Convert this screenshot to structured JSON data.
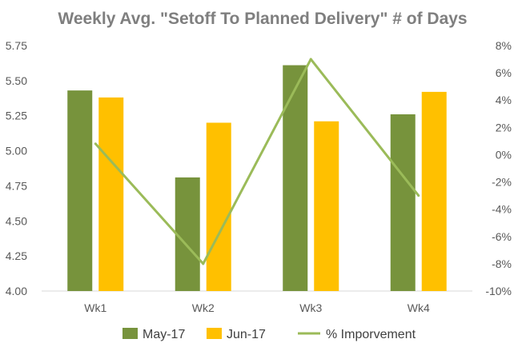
{
  "chart_data": {
    "type": "bar",
    "title": "Weekly Avg. \"Setoff To Planned Delivery\"  # of Days",
    "categories": [
      "Wk1",
      "Wk2",
      "Wk3",
      "Wk4"
    ],
    "series": [
      {
        "name": "May-17",
        "type": "bar",
        "axis": "left",
        "color": "#77933c",
        "values": [
          5.43,
          4.81,
          5.61,
          5.26
        ]
      },
      {
        "name": "Jun-17",
        "type": "bar",
        "axis": "left",
        "color": "#ffc000",
        "values": [
          5.38,
          5.2,
          5.21,
          5.42
        ]
      },
      {
        "name": "% Imporvement",
        "type": "line",
        "axis": "right",
        "color": "#9bbb59",
        "values": [
          0.8,
          -8.0,
          7.0,
          -3.0
        ]
      }
    ],
    "y_left": {
      "range": [
        4.0,
        5.75
      ],
      "ticks": [
        "4.00",
        "4.25",
        "4.50",
        "4.75",
        "5.00",
        "5.25",
        "5.50",
        "5.75"
      ]
    },
    "y_right": {
      "range": [
        -10,
        8
      ],
      "ticks": [
        "-10%",
        "-8%",
        "-6%",
        "-4%",
        "-2%",
        "0%",
        "2%",
        "4%",
        "6%",
        "8%"
      ]
    },
    "grid": false,
    "legend": "bottom"
  }
}
